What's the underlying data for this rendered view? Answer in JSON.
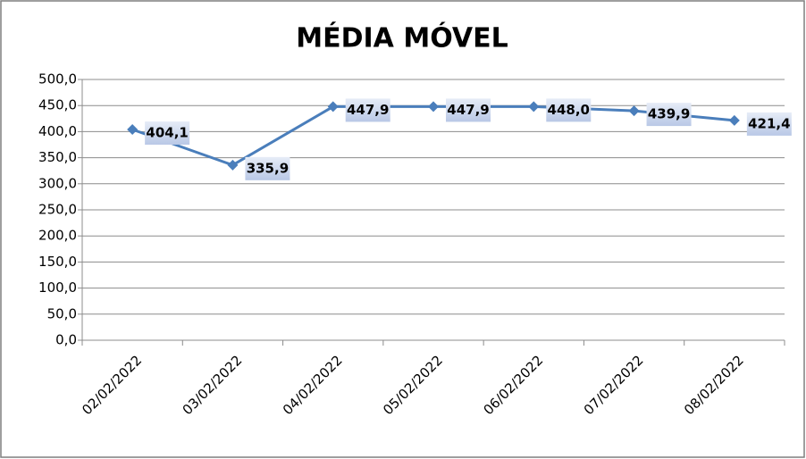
{
  "chart_data": {
    "type": "line",
    "title": "MÉDIA MÓVEL",
    "categories": [
      "02/02/2022",
      "03/02/2022",
      "04/02/2022",
      "05/02/2022",
      "06/02/2022",
      "07/02/2022",
      "08/02/2022"
    ],
    "values": [
      404.1,
      335.9,
      447.9,
      447.9,
      448.0,
      439.9,
      421.4
    ],
    "value_labels": [
      "404,1",
      "335,9",
      "447,9",
      "447,9",
      "448,0",
      "439,9",
      "421,4"
    ],
    "color": "#4a7ebb",
    "ylim": [
      0,
      500
    ],
    "yticks": [
      {
        "value": 0,
        "label": "0,0"
      },
      {
        "value": 50,
        "label": "50,0"
      },
      {
        "value": 100,
        "label": "100,0"
      },
      {
        "value": 150,
        "label": "150,0"
      },
      {
        "value": 200,
        "label": "200,0"
      },
      {
        "value": 250,
        "label": "250,0"
      },
      {
        "value": 300,
        "label": "300,0"
      },
      {
        "value": 350,
        "label": "350,0"
      },
      {
        "value": 400,
        "label": "400,0"
      },
      {
        "value": 450,
        "label": "450,0"
      },
      {
        "value": 500,
        "label": "500,0"
      }
    ],
    "grid": true
  }
}
